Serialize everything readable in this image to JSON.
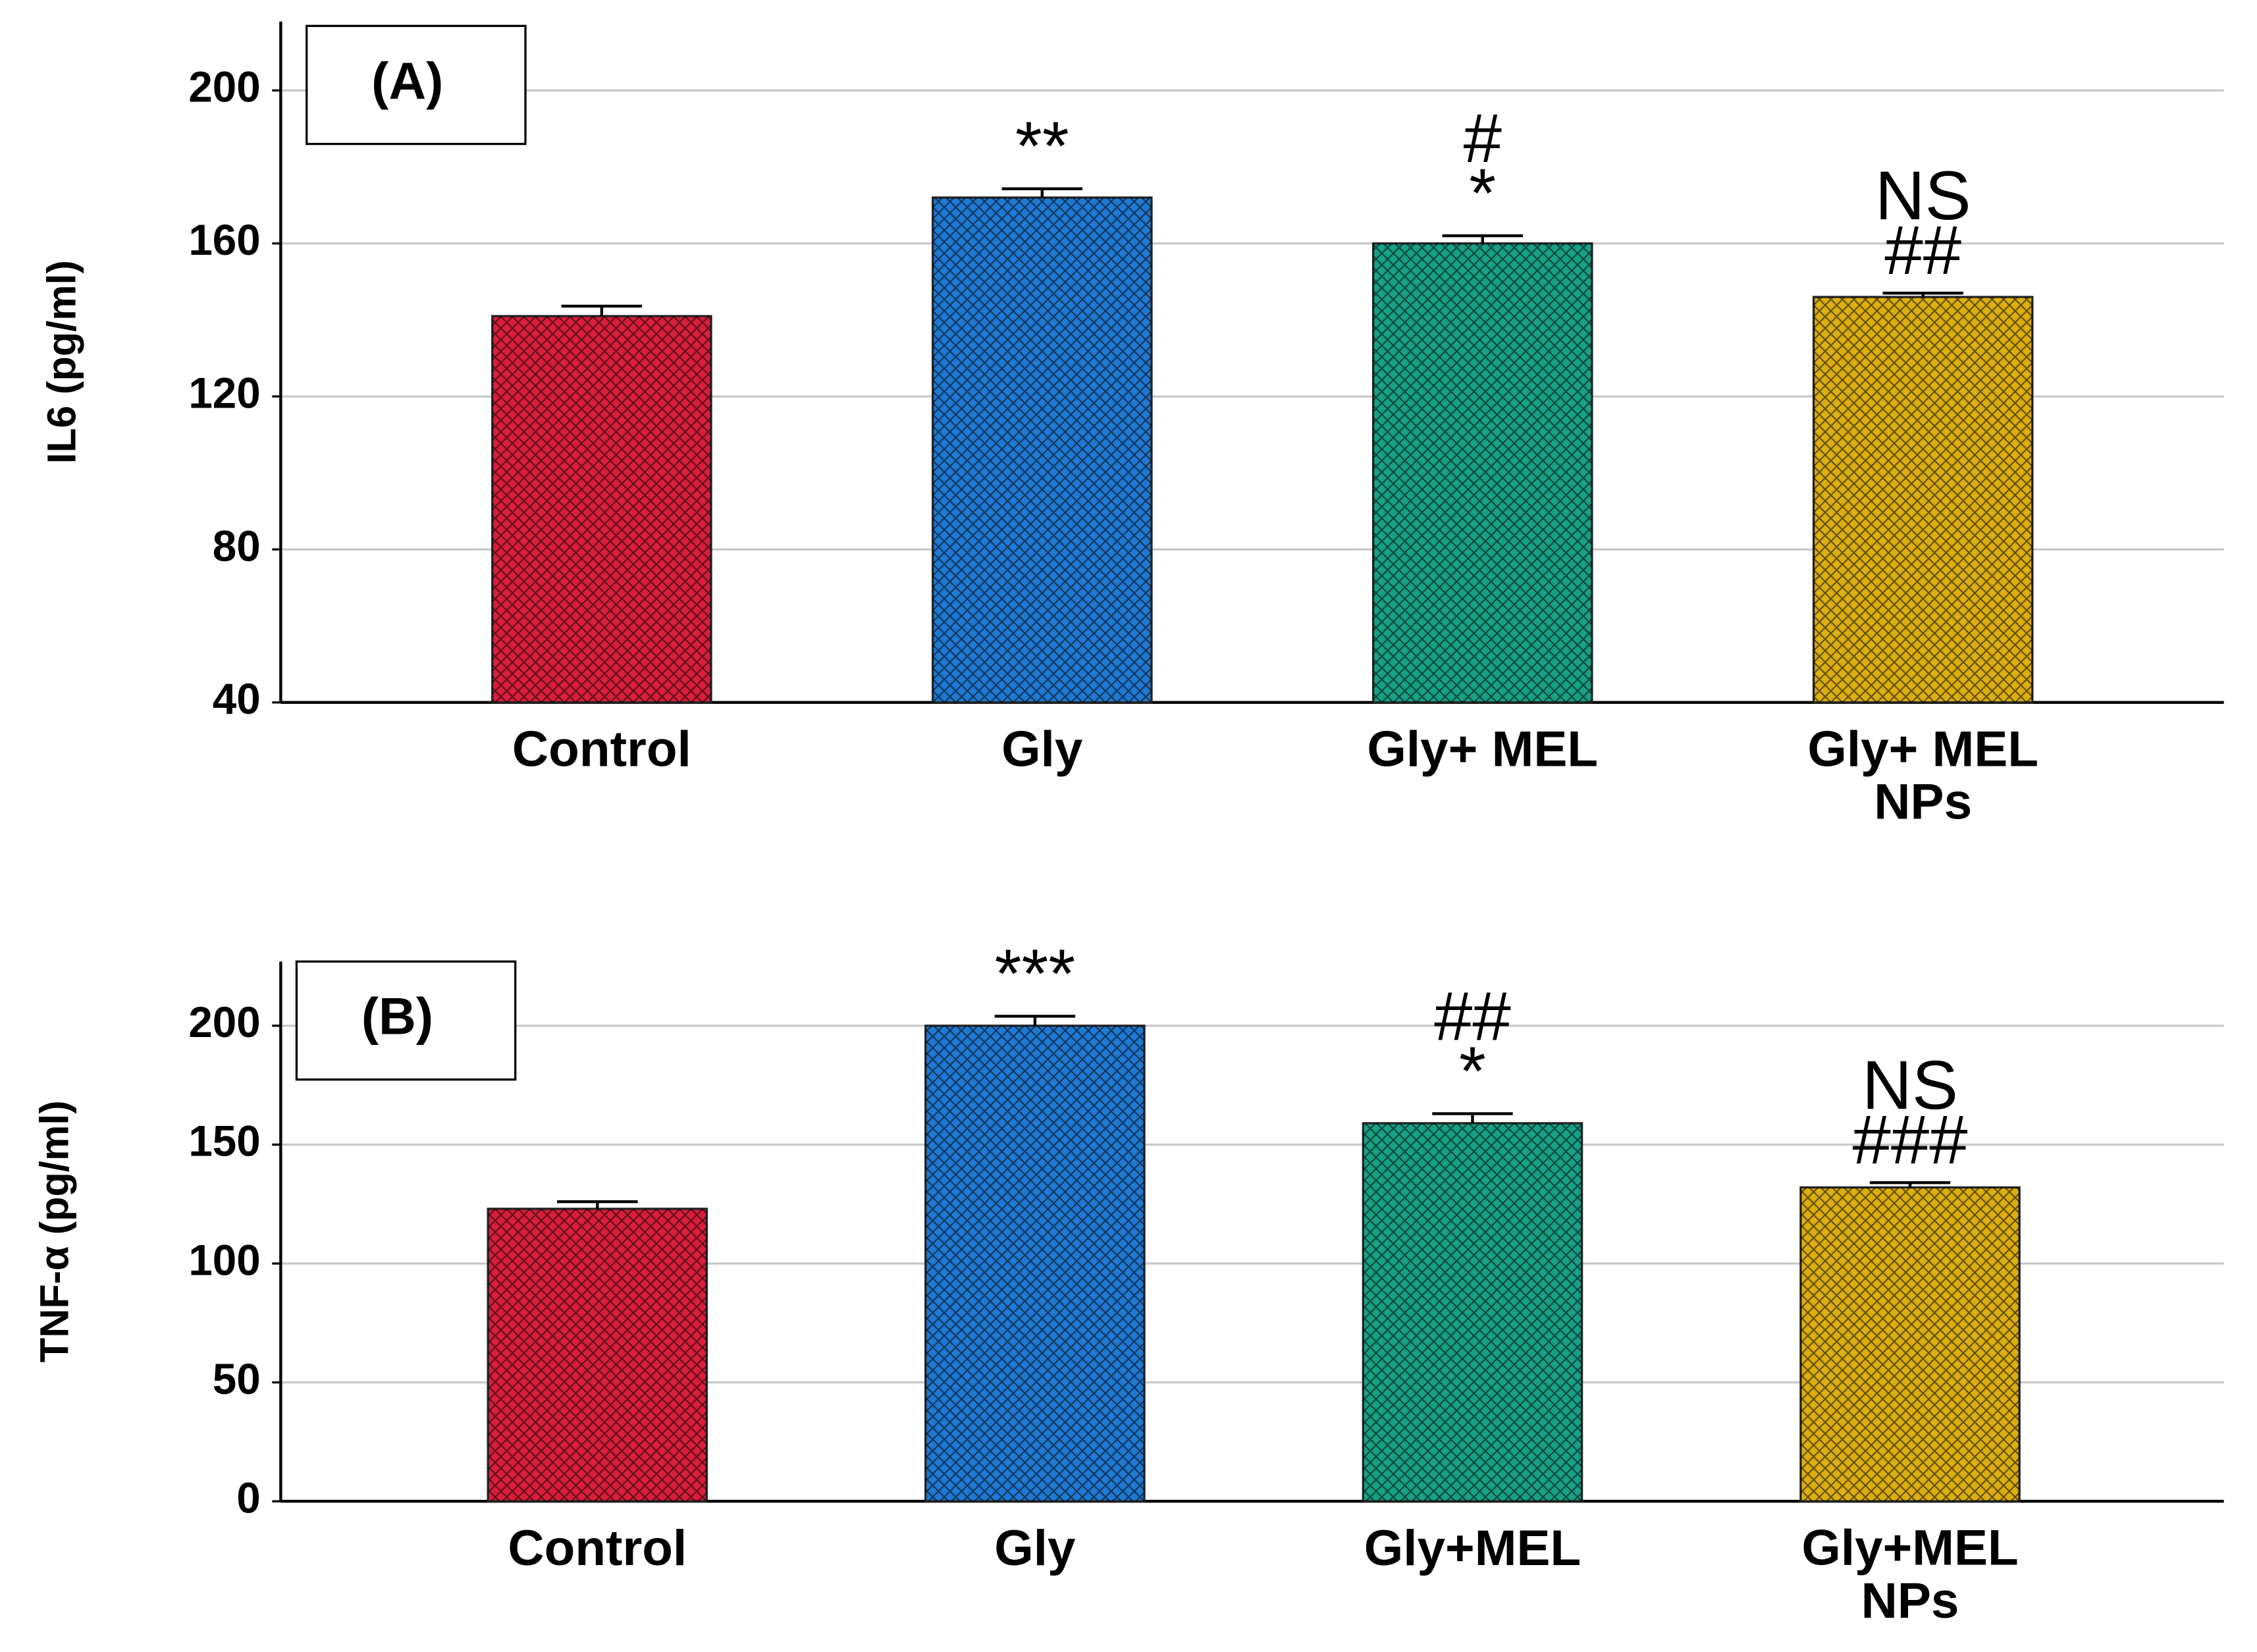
{
  "chart_data": [
    {
      "type": "bar",
      "panel_label": "(A)",
      "y_label": "IL6 (pg/ml)",
      "categories": [
        "Control",
        "Gly",
        "Gly+ MEL",
        "Gly+ MEL\nNPs"
      ],
      "values": [
        141,
        172,
        160,
        146
      ],
      "errors": [
        2.6,
        2.3,
        2,
        1
      ],
      "colors": [
        "#d81e3a",
        "#1f78d1",
        "#17a085",
        "#dcae0e"
      ],
      "annotations": [
        [],
        [
          "**"
        ],
        [
          "#",
          "*"
        ],
        [
          "NS",
          "##"
        ]
      ],
      "ylim": [
        40,
        218
      ],
      "yticks": [
        40,
        80,
        120,
        160,
        200
      ],
      "grid": true
    },
    {
      "type": "bar",
      "panel_label": "(B)",
      "y_label": "TNF-α (pg/ml)",
      "categories": [
        "Control",
        "Gly",
        "Gly+MEL",
        "Gly+MEL\nNPs"
      ],
      "values": [
        123,
        200,
        159,
        132
      ],
      "errors": [
        3,
        4,
        4,
        2
      ],
      "colors": [
        "#d81e3a",
        "#1f78d1",
        "#17a085",
        "#dcae0e"
      ],
      "annotations": [
        [],
        [
          "***"
        ],
        [
          "##",
          "*"
        ],
        [
          "NS",
          "###"
        ]
      ],
      "ylim": [
        0,
        227
      ],
      "yticks": [
        0,
        50,
        100,
        150,
        200
      ],
      "grid": true
    }
  ]
}
